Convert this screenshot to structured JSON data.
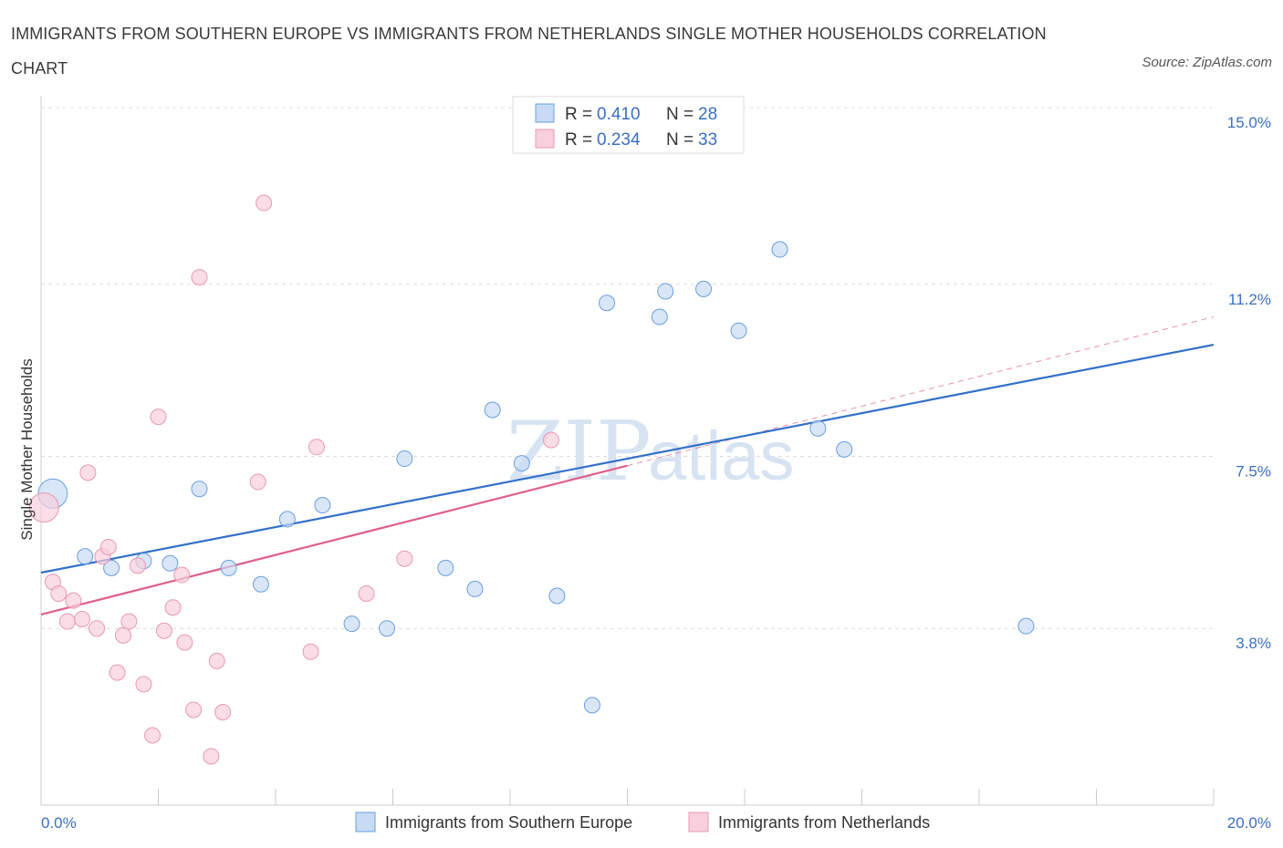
{
  "title": "IMMIGRANTS FROM SOUTHERN EUROPE VS IMMIGRANTS FROM NETHERLANDS SINGLE MOTHER HOUSEHOLDS CORRELATION CHART",
  "source": "Source: ZipAtlas.com",
  "watermark": {
    "zip": "ZIP",
    "atlas": "atlas"
  },
  "chart_data": {
    "type": "scatter",
    "ylabel": "Single Mother Households",
    "xlim": [
      0,
      20
    ],
    "ylim": [
      0,
      15
    ],
    "x_tick_labels": [
      {
        "v": 0,
        "label": "0.0%"
      },
      {
        "v": 20,
        "label": "20.0%"
      }
    ],
    "y_tick_labels": [
      {
        "v": 3.8,
        "label": "3.8%"
      },
      {
        "v": 7.5,
        "label": "7.5%"
      },
      {
        "v": 11.2,
        "label": "11.2%"
      },
      {
        "v": 15.0,
        "label": "15.0%"
      }
    ],
    "grid": true,
    "series": [
      {
        "name": "Immigrants from Southern Europe",
        "color": "#6a9fe0",
        "fill": "#c7dbf5",
        "line_color": "#3270c8",
        "r_label": "R = ",
        "r_value": "0.410",
        "n_label": "N = ",
        "n_value": "28",
        "trend": {
          "x0": 0,
          "y0": 5.0,
          "x1": 20,
          "y1": 9.9
        },
        "points": [
          {
            "x": 0.2,
            "y": 6.7,
            "big": true
          },
          {
            "x": 0.75,
            "y": 5.35
          },
          {
            "x": 1.2,
            "y": 5.1
          },
          {
            "x": 1.75,
            "y": 5.25
          },
          {
            "x": 2.2,
            "y": 5.2
          },
          {
            "x": 2.7,
            "y": 6.8
          },
          {
            "x": 3.2,
            "y": 5.1
          },
          {
            "x": 3.75,
            "y": 4.75
          },
          {
            "x": 4.2,
            "y": 6.15
          },
          {
            "x": 4.8,
            "y": 6.45
          },
          {
            "x": 5.3,
            "y": 3.9
          },
          {
            "x": 5.9,
            "y": 3.8
          },
          {
            "x": 6.2,
            "y": 7.45
          },
          {
            "x": 6.9,
            "y": 5.1
          },
          {
            "x": 7.4,
            "y": 4.65
          },
          {
            "x": 7.7,
            "y": 8.5
          },
          {
            "x": 8.2,
            "y": 7.35
          },
          {
            "x": 8.8,
            "y": 4.5
          },
          {
            "x": 9.4,
            "y": 2.15
          },
          {
            "x": 9.65,
            "y": 10.8
          },
          {
            "x": 10.55,
            "y": 10.5
          },
          {
            "x": 10.65,
            "y": 11.05
          },
          {
            "x": 11.3,
            "y": 11.1
          },
          {
            "x": 11.9,
            "y": 10.2
          },
          {
            "x": 12.6,
            "y": 11.95
          },
          {
            "x": 13.25,
            "y": 8.1
          },
          {
            "x": 13.7,
            "y": 7.65
          },
          {
            "x": 16.8,
            "y": 3.85
          }
        ]
      },
      {
        "name": "Immigrants from Netherlands",
        "color": "#e899b3",
        "fill": "#f8cfdc",
        "line_color": "#e0608c",
        "r_label": "R = ",
        "r_value": "0.234",
        "n_label": "N = ",
        "n_value": "33",
        "trend": {
          "x0": 0,
          "y0": 4.1,
          "x1": 10.0,
          "y1": 7.3
        },
        "trend_ext": {
          "x0": 10.0,
          "y0": 7.3,
          "x1": 20,
          "y1": 10.5
        },
        "points": [
          {
            "x": 0.05,
            "y": 6.4,
            "big": true
          },
          {
            "x": 0.2,
            "y": 4.8
          },
          {
            "x": 0.3,
            "y": 4.55
          },
          {
            "x": 0.45,
            "y": 3.95
          },
          {
            "x": 0.55,
            "y": 4.4
          },
          {
            "x": 0.7,
            "y": 4.0
          },
          {
            "x": 0.8,
            "y": 7.15
          },
          {
            "x": 0.95,
            "y": 3.8
          },
          {
            "x": 1.05,
            "y": 5.35
          },
          {
            "x": 1.15,
            "y": 5.55
          },
          {
            "x": 1.3,
            "y": 2.85
          },
          {
            "x": 1.4,
            "y": 3.65
          },
          {
            "x": 1.5,
            "y": 3.95
          },
          {
            "x": 1.65,
            "y": 5.15
          },
          {
            "x": 1.75,
            "y": 2.6
          },
          {
            "x": 1.9,
            "y": 1.5
          },
          {
            "x": 2.0,
            "y": 8.35
          },
          {
            "x": 2.1,
            "y": 3.75
          },
          {
            "x": 2.25,
            "y": 4.25
          },
          {
            "x": 2.4,
            "y": 4.95
          },
          {
            "x": 2.45,
            "y": 3.5
          },
          {
            "x": 2.6,
            "y": 2.05
          },
          {
            "x": 2.7,
            "y": 11.35
          },
          {
            "x": 2.9,
            "y": 1.05
          },
          {
            "x": 3.0,
            "y": 3.1
          },
          {
            "x": 3.1,
            "y": 2.0
          },
          {
            "x": 3.7,
            "y": 6.95
          },
          {
            "x": 3.8,
            "y": 12.95
          },
          {
            "x": 4.6,
            "y": 3.3
          },
          {
            "x": 4.7,
            "y": 7.7
          },
          {
            "x": 5.55,
            "y": 4.55
          },
          {
            "x": 6.2,
            "y": 5.3
          },
          {
            "x": 8.7,
            "y": 7.85
          }
        ]
      }
    ]
  }
}
